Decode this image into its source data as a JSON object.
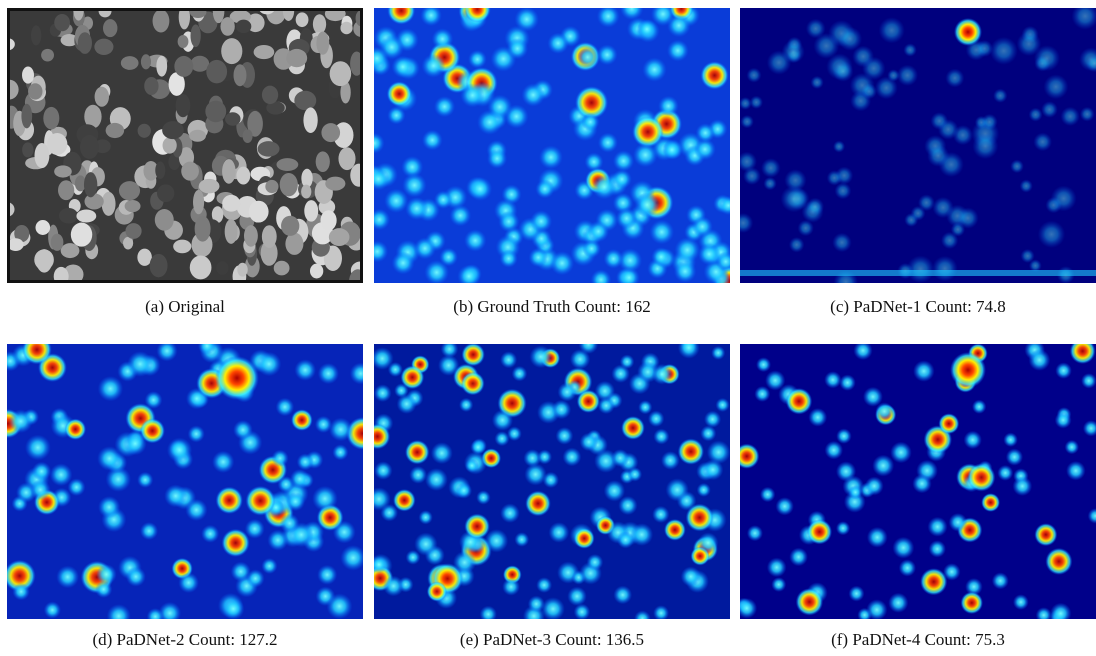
{
  "figure": {
    "panels": [
      {
        "caption": "(a) Original"
      },
      {
        "caption": "(b) Ground Truth Count: 162"
      },
      {
        "caption": "(c) PaDNet-1 Count: 74.8"
      },
      {
        "caption": "(d) PaDNet-2 Count: 127.2"
      },
      {
        "caption": "(e) PaDNet-3 Count: 136.5"
      },
      {
        "caption": "(f) PaDNet-4 Count: 75.3"
      }
    ]
  }
}
